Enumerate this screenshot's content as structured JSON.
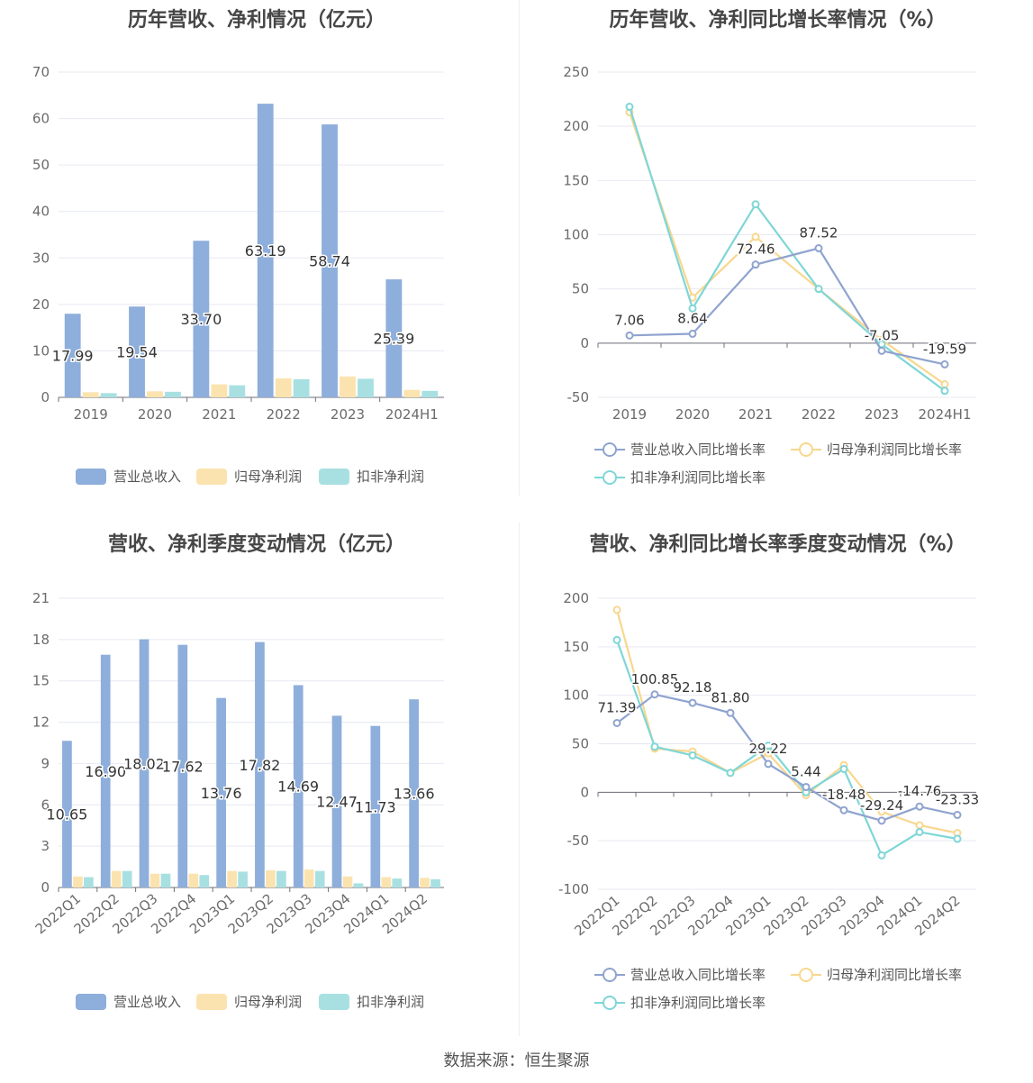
{
  "source": "数据来源：恒生聚源",
  "colors": {
    "revenue": "#8eaedb",
    "parent_net": "#fbe3b0",
    "deducted_net": "#a8e0e2",
    "rev_line": "#8fa3cf",
    "parent_line": "#f8d78f",
    "ded_line": "#7fd6d7"
  },
  "chart_data": [
    {
      "id": "annual_amount",
      "type": "bar",
      "title": "历年营收、净利情况（亿元）",
      "categories": [
        "2019",
        "2020",
        "2021",
        "2022",
        "2023",
        "2024H1"
      ],
      "ylim": [
        0,
        70
      ],
      "yticks": [
        0,
        10,
        20,
        30,
        40,
        50,
        60,
        70
      ],
      "legend_position": "bottom",
      "series": [
        {
          "name": "营业总收入",
          "values": [
            17.99,
            19.54,
            33.7,
            63.19,
            58.74,
            25.39
          ],
          "labeled": true
        },
        {
          "name": "归母净利润",
          "values": [
            1.1,
            1.3,
            2.8,
            4.1,
            4.5,
            1.6
          ]
        },
        {
          "name": "扣非净利润",
          "values": [
            0.9,
            1.2,
            2.6,
            3.9,
            4.0,
            1.4
          ]
        }
      ]
    },
    {
      "id": "annual_growth",
      "type": "line",
      "title": "历年营收、净利同比增长率情况（%）",
      "categories": [
        "2019",
        "2020",
        "2021",
        "2022",
        "2023",
        "2024H1"
      ],
      "ylim": [
        -50,
        250
      ],
      "yticks": [
        -50,
        0,
        50,
        100,
        150,
        200,
        250
      ],
      "legend_position": "bottom",
      "series": [
        {
          "name": "营业总收入同比增长率",
          "values": [
            7.06,
            8.64,
            72.46,
            87.52,
            -7.05,
            -19.59
          ],
          "labeled": true
        },
        {
          "name": "归母净利润同比增长率",
          "values": [
            213,
            42,
            98,
            50,
            3,
            -38
          ]
        },
        {
          "name": "扣非净利润同比增长率",
          "values": [
            218,
            32,
            128,
            50,
            -1,
            -44
          ]
        }
      ]
    },
    {
      "id": "quarterly_amount",
      "type": "bar",
      "title": "营收、净利季度变动情况（亿元）",
      "categories": [
        "2022Q1",
        "2022Q2",
        "2022Q3",
        "2022Q4",
        "2023Q1",
        "2023Q2",
        "2023Q3",
        "2023Q4",
        "2024Q1",
        "2024Q2"
      ],
      "ylim": [
        0,
        21
      ],
      "yticks": [
        0,
        3,
        6,
        9,
        12,
        15,
        18,
        21
      ],
      "legend_position": "bottom",
      "series": [
        {
          "name": "营业总收入",
          "values": [
            10.65,
            16.9,
            18.02,
            17.62,
            13.76,
            17.82,
            14.69,
            12.47,
            11.73,
            13.66
          ],
          "labeled": true
        },
        {
          "name": "归母净利润",
          "values": [
            0.8,
            1.2,
            1.0,
            1.0,
            1.2,
            1.25,
            1.3,
            0.8,
            0.75,
            0.7
          ]
        },
        {
          "name": "扣非净利润",
          "values": [
            0.75,
            1.2,
            1.0,
            0.9,
            1.15,
            1.2,
            1.2,
            0.3,
            0.65,
            0.6
          ]
        }
      ]
    },
    {
      "id": "quarterly_growth",
      "type": "line",
      "title": "营收、净利同比增长率季度变动情况（%）",
      "categories": [
        "2022Q1",
        "2022Q2",
        "2022Q3",
        "2022Q4",
        "2023Q1",
        "2023Q2",
        "2023Q3",
        "2023Q4",
        "2024Q1",
        "2024Q2"
      ],
      "ylim": [
        -100,
        200
      ],
      "yticks": [
        -100,
        -50,
        0,
        50,
        100,
        150,
        200
      ],
      "legend_position": "bottom",
      "series": [
        {
          "name": "营业总收入同比增长率",
          "values": [
            71.39,
            100.85,
            92.18,
            81.8,
            29.22,
            5.44,
            -18.48,
            -29.24,
            -14.76,
            -23.33
          ],
          "labeled": true
        },
        {
          "name": "归母净利润同比增长率",
          "values": [
            188,
            45,
            42,
            20,
            40,
            -3,
            28,
            -20,
            -34,
            -42
          ]
        },
        {
          "name": "扣非净利润同比增长率",
          "values": [
            157,
            47,
            38,
            20,
            48,
            0,
            24,
            -65,
            -41,
            -48
          ]
        }
      ]
    }
  ]
}
